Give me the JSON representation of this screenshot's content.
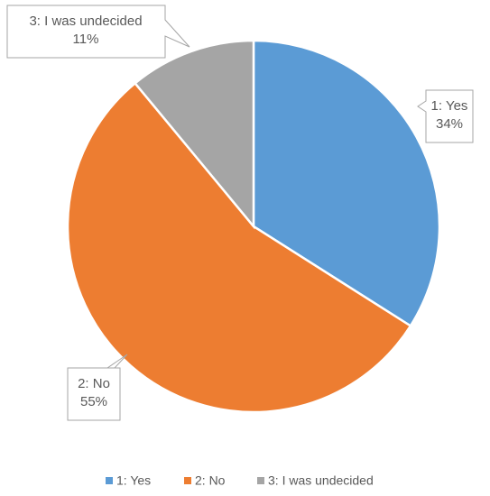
{
  "chart_data": {
    "type": "pie",
    "categories": [
      "1: Yes",
      "2: No",
      "3: I was undecided"
    ],
    "values": [
      34,
      55,
      11
    ],
    "value_labels": [
      "34%",
      "55%",
      "11%"
    ],
    "colors": [
      "#5b9bd5",
      "#ed7d31",
      "#a5a5a5"
    ],
    "legend": "bottom"
  }
}
